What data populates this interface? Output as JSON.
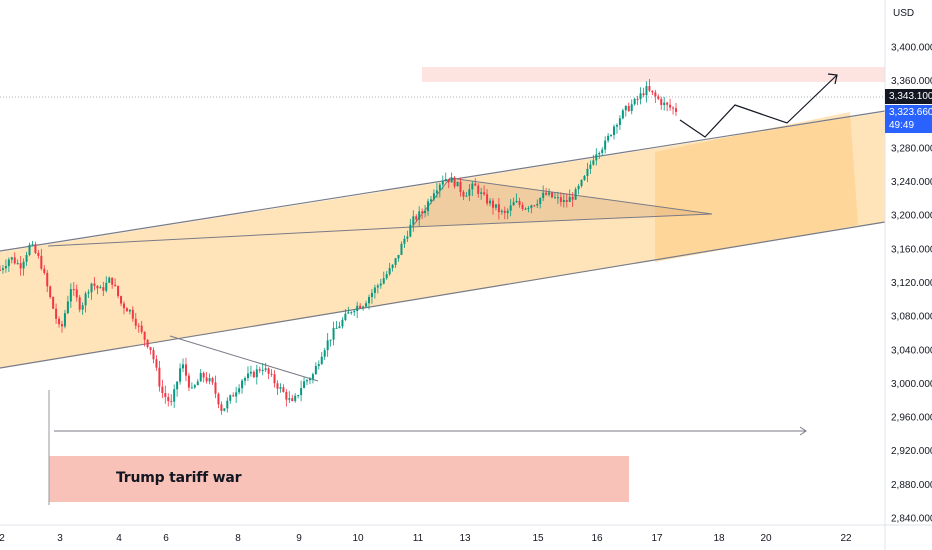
{
  "chart_data": {
    "type": "candlestick",
    "instrument_currency": "USD",
    "y_range": [
      2840,
      3440
    ],
    "y_ticks": [
      "3,400.000",
      "3,360.000",
      "3,320.000",
      "3,280.000",
      "3,240.000",
      "3,200.000",
      "3,160.000",
      "3,120.000",
      "3,080.000",
      "3,040.000",
      "3,000.000",
      "2,960.000",
      "2,920.000",
      "2,880.000",
      "2,840.000"
    ],
    "y_tick_values": [
      3400,
      3360,
      3320,
      3280,
      3240,
      3200,
      3160,
      3120,
      3080,
      3040,
      3000,
      2960,
      2920,
      2880,
      2840
    ],
    "x_ticks": [
      "2",
      "3",
      "4",
      "6",
      "8",
      "9",
      "10",
      "11",
      "13",
      "15",
      "16",
      "17",
      "18",
      "20",
      "22"
    ],
    "last_price": "3,343.100",
    "current_price": "3,323.660",
    "countdown": "49:49",
    "annotation": "Trump tariff war",
    "colors": {
      "up": "#089981",
      "down": "#f23645",
      "channel_fill": "#ffcc80",
      "zone": "#f8b3a8",
      "last_tag": "#131722",
      "current_tag": "#2962ff"
    },
    "ohlc_path": [
      3135,
      3150,
      3140,
      3165,
      3145,
      3100,
      3060,
      3115,
      3090,
      3120,
      3110,
      3125,
      3095,
      3085,
      3060,
      3040,
      2990,
      2975,
      3025,
      2990,
      3010,
      3000,
      2968,
      2985,
      3005,
      3010,
      3020,
      3005,
      2990,
      2975,
      3000,
      3010,
      3040,
      3060,
      3075,
      3090,
      3095,
      3110,
      3125,
      3140,
      3170,
      3195,
      3205,
      3230,
      3245,
      3240,
      3225,
      3235,
      3220,
      3210,
      3200,
      3215,
      3210,
      3215,
      3225,
      3220,
      3215,
      3225,
      3245,
      3275,
      3285,
      3310,
      3325,
      3335,
      3350,
      3340,
      3330,
      3325
    ]
  }
}
